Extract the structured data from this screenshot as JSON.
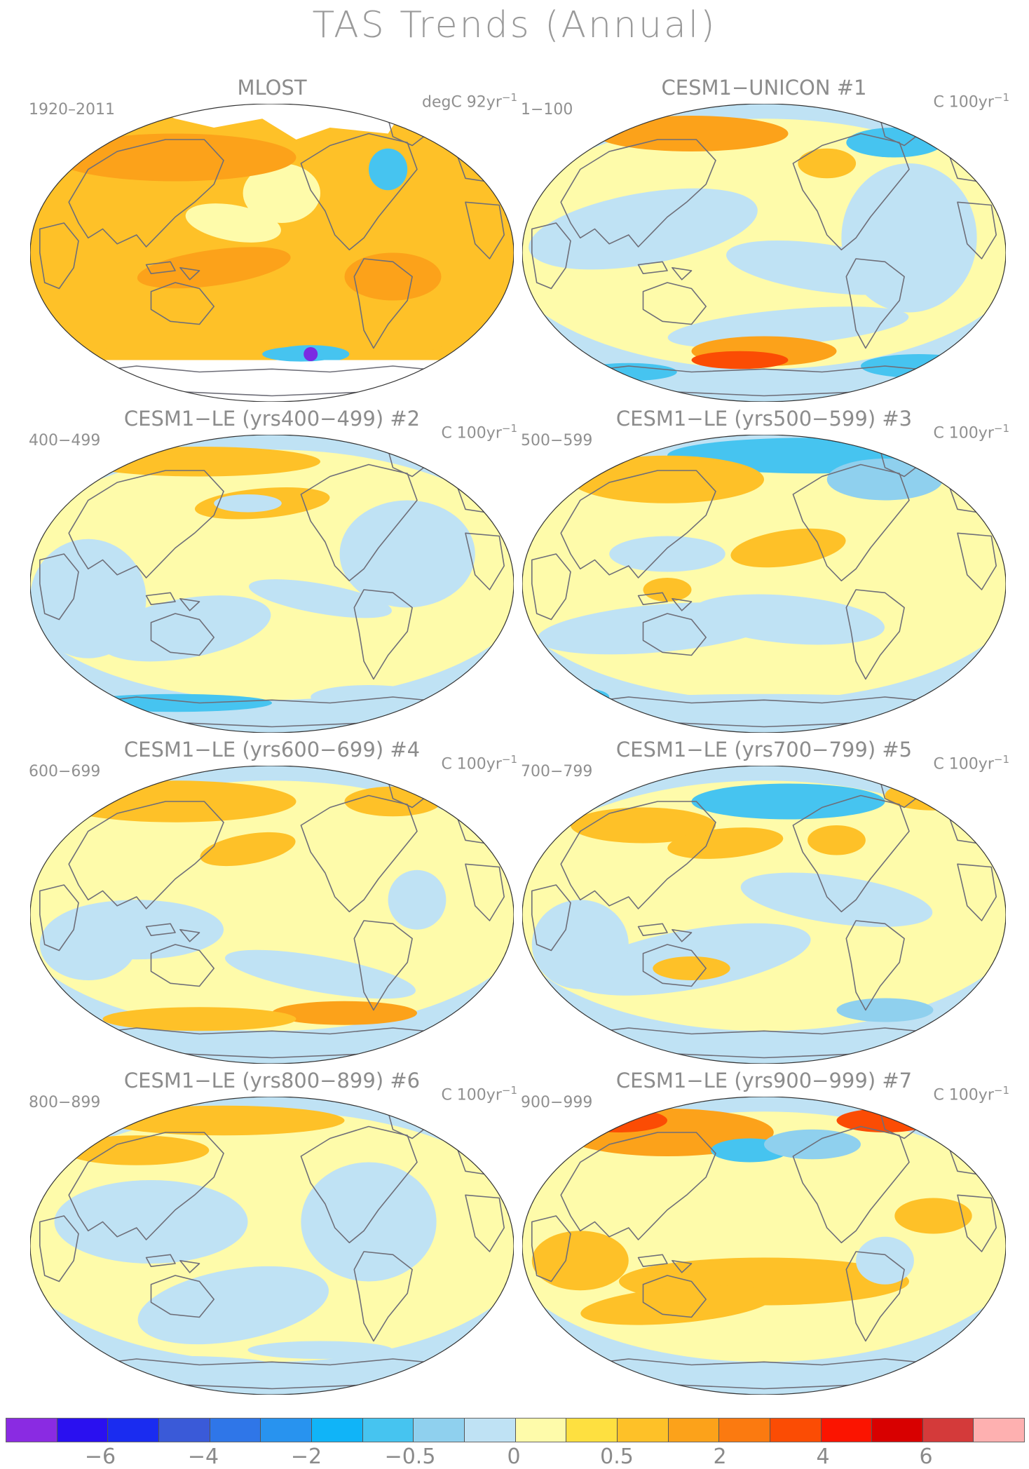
{
  "title": "TAS Trends (Annual)",
  "panels": [
    {
      "title": "MLOST",
      "tag": "",
      "period": "1920–2011",
      "units": "degC 92yr",
      "units_exp": "−1",
      "style": "obs"
    },
    {
      "title": "CESM1−UNICON",
      "tag": "#1",
      "period": "1−100",
      "units": "C 100yr",
      "units_exp": "−1",
      "style": "unicon"
    },
    {
      "title": "CESM1−LE (yrs400−499)",
      "tag": "#2",
      "period": "400−499",
      "units": "C 100yr",
      "units_exp": "−1",
      "style": "le2"
    },
    {
      "title": "CESM1−LE (yrs500−599)",
      "tag": "#3",
      "period": "500−599",
      "units": "C 100yr",
      "units_exp": "−1",
      "style": "le3"
    },
    {
      "title": "CESM1−LE (yrs600−699)",
      "tag": "#4",
      "period": "600−699",
      "units": "C 100yr",
      "units_exp": "−1",
      "style": "le4"
    },
    {
      "title": "CESM1−LE (yrs700−799)",
      "tag": "#5",
      "period": "700−799",
      "units": "C 100yr",
      "units_exp": "−1",
      "style": "le5"
    },
    {
      "title": "CESM1−LE (yrs800−899)",
      "tag": "#6",
      "period": "800−899",
      "units": "C 100yr",
      "units_exp": "−1",
      "style": "le6"
    },
    {
      "title": "CESM1−LE (yrs900−999)",
      "tag": "#7",
      "period": "900−999",
      "units": "C 100yr",
      "units_exp": "−1",
      "style": "le7"
    }
  ],
  "colorbar": {
    "colors": [
      "#8a2be2",
      "#2a10f0",
      "#1a2cf0",
      "#3a5ad8",
      "#2f76e8",
      "#2893ef",
      "#10b4f8",
      "#46c4f0",
      "#8fd0ee",
      "#bfe2f4",
      "#fefbaa",
      "#fee040",
      "#fec128",
      "#fca21a",
      "#fb7a10",
      "#fb4c04",
      "#fb1400",
      "#d80000",
      "#d43a3a",
      "#feb0b0"
    ],
    "labels": [
      "−6",
      "−4",
      "−2",
      "−0.5",
      "0",
      "0.5",
      "2",
      "4",
      "6"
    ]
  },
  "palette": {
    "ocean_blue": "#bfe2f4",
    "pale_yellow": "#fefbaa",
    "yellow": "#fee040",
    "orange": "#fec128",
    "dark_orange": "#fca21a",
    "blue": "#8fd0ee",
    "deep_blue": "#46c4f0",
    "red": "#fb4c04",
    "coast": "#6e6e78"
  }
}
